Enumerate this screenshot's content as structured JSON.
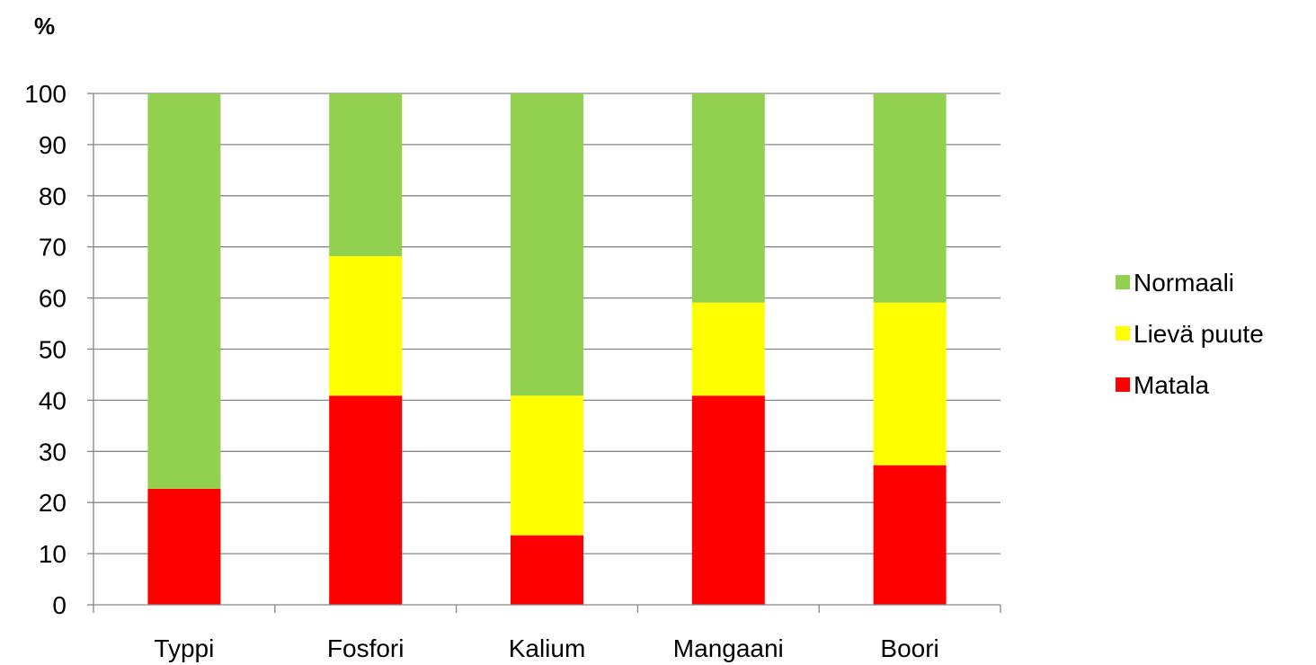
{
  "chart_data": {
    "type": "bar",
    "stacked": true,
    "ylabel": "%",
    "xlabel": "",
    "ylim": [
      0,
      100
    ],
    "yticks": [
      0,
      10,
      20,
      30,
      40,
      50,
      60,
      70,
      80,
      90,
      100
    ],
    "grid": true,
    "legend_position": "right",
    "categories": [
      "Typpi",
      "Fosfori",
      "Kalium",
      "Mangaani",
      "Boori"
    ],
    "series": [
      {
        "name": "Matala",
        "color": "#ff0000",
        "values": [
          22.7,
          40.9,
          13.6,
          40.9,
          27.3
        ]
      },
      {
        "name": "Lievä puute",
        "color": "#ffff00",
        "values": [
          0,
          27.3,
          27.3,
          18.2,
          31.8
        ]
      },
      {
        "name": "Normaali",
        "color": "#92d050",
        "values": [
          77.3,
          31.8,
          59.1,
          40.9,
          40.9
        ]
      }
    ],
    "legend_order": [
      "Normaali",
      "Lievä puute",
      "Matala"
    ]
  }
}
